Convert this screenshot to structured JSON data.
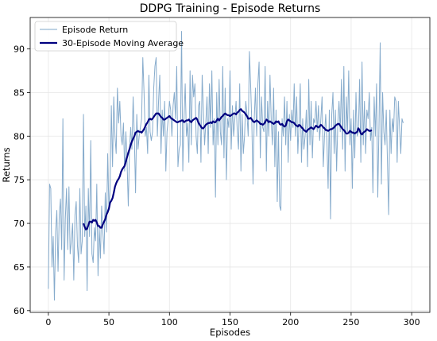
{
  "chart_data": {
    "type": "line",
    "title": "DDPG Training - Episode Returns",
    "xlabel": "Episodes",
    "ylabel": "Returns",
    "xlim": [
      -15,
      315
    ],
    "ylim": [
      59.8,
      93.6
    ],
    "xticks": [
      0,
      50,
      100,
      150,
      200,
      250,
      300
    ],
    "yticks": [
      60,
      65,
      70,
      75,
      80,
      85,
      90
    ],
    "grid": true,
    "legend_position": "top-left",
    "series": [
      {
        "name": "Episode Return",
        "color": "#7fa7c9",
        "x_start": 0,
        "x_step": 1,
        "values": [
          62.5,
          74.5,
          74.0,
          65.0,
          68.5,
          61.2,
          69.0,
          71.5,
          64.5,
          71.0,
          72.8,
          67.0,
          82.0,
          63.5,
          70.5,
          74.0,
          67.0,
          74.2,
          66.5,
          68.0,
          70.0,
          63.5,
          71.0,
          72.5,
          67.5,
          65.5,
          74.0,
          66.5,
          68.0,
          82.5,
          68.5,
          72.0,
          62.3,
          74.0,
          68.5,
          79.5,
          66.5,
          65.5,
          69.5,
          68.0,
          74.5,
          64.0,
          69.5,
          66.0,
          72.0,
          69.0,
          66.5,
          73.5,
          69.0,
          78.0,
          71.5,
          74.0,
          83.5,
          76.5,
          84.5,
          80.0,
          78.0,
          85.5,
          81.5,
          84.0,
          80.0,
          79.0,
          81.5,
          76.0,
          80.5,
          77.0,
          72.0,
          78.5,
          81.0,
          78.5,
          84.5,
          80.0,
          73.5,
          82.5,
          78.5,
          80.0,
          81.0,
          82.0,
          89.0,
          85.0,
          80.0,
          81.0,
          78.0,
          87.0,
          80.5,
          79.5,
          80.5,
          85.5,
          88.0,
          89.0,
          80.0,
          84.0,
          87.0,
          78.0,
          83.0,
          80.0,
          84.0,
          76.0,
          80.5,
          82.0,
          84.0,
          83.0,
          80.0,
          83.5,
          85.0,
          82.0,
          88.0,
          76.5,
          78.5,
          79.0,
          92.0,
          76.0,
          82.0,
          86.0,
          80.0,
          81.5,
          77.0,
          87.5,
          79.0,
          87.0,
          84.5,
          86.0,
          80.0,
          78.0,
          83.5,
          84.0,
          77.0,
          87.0,
          83.0,
          79.0,
          81.5,
          84.5,
          78.0,
          86.0,
          81.0,
          87.5,
          79.0,
          82.0,
          73.0,
          85.0,
          79.0,
          86.5,
          80.5,
          79.0,
          88.0,
          77.5,
          85.5,
          75.0,
          82.0,
          81.0,
          87.5,
          78.5,
          83.5,
          80.0,
          82.0,
          84.0,
          80.5,
          78.5,
          86.0,
          76.0,
          82.5,
          78.0,
          80.0,
          84.0,
          82.5,
          80.0,
          89.7,
          86.0,
          81.5,
          74.5,
          82.0,
          85.5,
          80.0,
          86.0,
          88.5,
          77.5,
          84.5,
          81.0,
          80.5,
          88.0,
          76.0,
          84.0,
          80.0,
          87.0,
          82.0,
          79.0,
          85.5,
          76.5,
          83.0,
          72.5,
          80.5,
          72.0,
          71.5,
          82.0,
          80.0,
          84.5,
          79.0,
          84.0,
          77.0,
          82.5,
          79.5,
          83.0,
          81.0,
          86.0,
          80.0,
          84.5,
          78.0,
          81.5,
          86.0,
          77.0,
          82.0,
          78.5,
          80.0,
          83.0,
          76.5,
          86.5,
          79.0,
          84.0,
          77.5,
          82.0,
          81.5,
          84.0,
          80.5,
          83.5,
          79.5,
          82.0,
          84.5,
          76.5,
          80.0,
          82.5,
          79.5,
          74.0,
          83.0,
          70.5,
          82.5,
          85.0,
          78.0,
          83.0,
          76.0,
          81.5,
          84.0,
          80.5,
          86.5,
          78.5,
          88.0,
          76.0,
          84.5,
          80.5,
          87.5,
          79.0,
          82.0,
          74.0,
          83.0,
          77.5,
          85.0,
          80.0,
          80.5,
          86.5,
          77.0,
          88.5,
          79.0,
          84.0,
          78.0,
          83.0,
          82.0,
          85.0,
          79.5,
          81.0,
          73.5,
          84.5,
          80.0,
          86.0,
          73.0,
          81.0,
          90.7,
          74.5,
          85.0,
          80.5,
          79.0,
          83.0,
          77.0,
          71.0,
          83.0,
          78.0,
          82.0,
          80.5,
          84.5,
          84.0,
          77.0,
          84.0,
          81.0,
          78.0,
          82.0,
          81.5
        ]
      },
      {
        "name": "30-Episode Moving Average",
        "color": "#000080",
        "x_start": 29,
        "x_step": 1,
        "values": [
          70.0,
          69.6,
          69.3,
          69.4,
          69.8,
          70.2,
          70.2,
          70.1,
          70.4,
          70.3,
          70.4,
          70.1,
          69.7,
          69.7,
          69.5,
          69.5,
          69.9,
          70.2,
          70.5,
          71.0,
          71.3,
          71.7,
          72.4,
          72.6,
          72.9,
          73.5,
          74.2,
          74.6,
          74.9,
          75.1,
          75.4,
          75.9,
          76.2,
          76.4,
          76.6,
          77.1,
          77.6,
          78.1,
          78.5,
          79.0,
          79.4,
          79.7,
          80.0,
          80.4,
          80.5,
          80.6,
          80.5,
          80.5,
          80.4,
          80.6,
          80.8,
          81.1,
          81.4,
          81.6,
          81.9,
          82.0,
          81.9,
          82.0,
          82.2,
          82.4,
          82.6,
          82.6,
          82.6,
          82.4,
          82.2,
          82.1,
          81.9,
          81.9,
          82.0,
          82.1,
          82.2,
          82.3,
          82.1,
          82.0,
          81.9,
          81.8,
          81.7,
          81.6,
          81.6,
          81.7,
          81.7,
          81.8,
          81.8,
          81.6,
          81.7,
          81.8,
          81.8,
          81.9,
          81.7,
          81.6,
          81.8,
          81.9,
          82.0,
          82.1,
          81.9,
          81.5,
          81.3,
          81.1,
          80.9,
          80.9,
          81.1,
          81.3,
          81.4,
          81.5,
          81.5,
          81.6,
          81.5,
          81.7,
          81.6,
          81.6,
          81.8,
          82.0,
          81.8,
          82.0,
          82.2,
          82.3,
          82.5,
          82.6,
          82.5,
          82.4,
          82.4,
          82.3,
          82.4,
          82.5,
          82.6,
          82.6,
          82.5,
          82.7,
          82.8,
          83.0,
          83.1,
          82.9,
          82.8,
          82.7,
          82.5,
          82.3,
          82.0,
          82.0,
          82.1,
          81.9,
          81.7,
          81.6,
          81.7,
          81.8,
          81.7,
          81.6,
          81.4,
          81.4,
          81.3,
          81.4,
          81.6,
          81.9,
          81.8,
          81.6,
          81.7,
          81.6,
          81.5,
          81.4,
          81.5,
          81.7,
          81.6,
          81.7,
          81.4,
          81.3,
          81.4,
          81.2,
          81.1,
          81.2,
          81.7,
          81.9,
          81.8,
          81.7,
          81.6,
          81.6,
          81.5,
          81.3,
          81.2,
          81.1,
          81.3,
          81.2,
          81.0,
          80.9,
          80.7,
          80.6,
          80.5,
          80.7,
          80.8,
          80.9,
          81.0,
          80.9,
          80.8,
          81.0,
          81.2,
          81.1,
          81.0,
          81.1,
          81.3,
          81.2,
          81.0,
          80.9,
          80.7,
          80.7,
          80.6,
          80.7,
          80.8,
          80.8,
          80.9,
          81.0,
          81.2,
          81.3,
          81.4,
          81.4,
          81.2,
          81.0,
          80.8,
          80.7,
          80.5,
          80.3,
          80.3,
          80.4,
          80.6,
          80.5,
          80.4,
          80.4,
          80.3,
          80.4,
          80.5,
          80.9,
          80.7,
          80.3,
          80.2,
          80.4,
          80.5,
          80.6,
          80.8,
          80.7,
          80.6,
          80.6,
          80.7
        ]
      }
    ]
  }
}
